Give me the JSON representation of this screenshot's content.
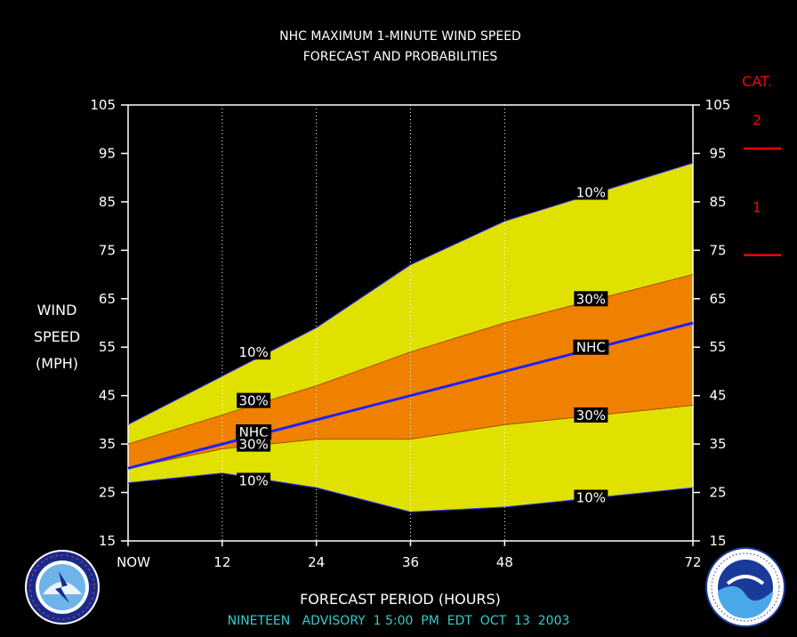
{
  "chart_data": {
    "type": "area",
    "title": [
      "NHC MAXIMUM 1-MINUTE WIND SPEED",
      "FORECAST AND PROBABILITIES"
    ],
    "xlabel": "FORECAST PERIOD (HOURS)",
    "ylabel": [
      "WIND",
      "SPEED",
      "(MPH)"
    ],
    "xlim": [
      0,
      72
    ],
    "ylim": [
      15,
      105
    ],
    "x_ticks": [
      0,
      12,
      24,
      36,
      48,
      72
    ],
    "x_tick_labels": [
      "NOW",
      "12",
      "24",
      "36",
      "48",
      "72"
    ],
    "y_ticks": [
      15,
      25,
      35,
      45,
      55,
      65,
      75,
      85,
      95,
      105
    ],
    "x": [
      0,
      12,
      24,
      36,
      48,
      60,
      72
    ],
    "colors": {
      "band10": "#e1e100",
      "band30": "#f08000",
      "nhc": "#2020ff",
      "category": "#ff0000",
      "advisory": "#33cccc",
      "background": "#000000"
    },
    "series": [
      {
        "name": "10%",
        "role": "upper10",
        "values": [
          39,
          49,
          59,
          72,
          81,
          87,
          93
        ]
      },
      {
        "name": "30%",
        "role": "upper30",
        "values": [
          35,
          41,
          47,
          54,
          60,
          65,
          70
        ]
      },
      {
        "name": "NHC",
        "role": "nhc",
        "values": [
          30,
          35,
          40,
          45,
          50,
          55,
          60
        ]
      },
      {
        "name": "30%",
        "role": "lower30",
        "values": [
          30,
          34,
          36,
          36,
          39,
          41,
          43
        ]
      },
      {
        "name": "10%",
        "role": "lower10",
        "values": [
          27,
          29,
          26,
          21,
          22,
          24,
          26
        ]
      }
    ],
    "annotations": [
      {
        "text": "10%",
        "x": 16,
        "y": 54
      },
      {
        "text": "30%",
        "x": 16,
        "y": 44
      },
      {
        "text": "NHC",
        "x": 16,
        "y": 37.5
      },
      {
        "text": "30%",
        "x": 16,
        "y": 35
      },
      {
        "text": "10%",
        "x": 16,
        "y": 27.5
      },
      {
        "text": "10%",
        "x": 59,
        "y": 87
      },
      {
        "text": "30%",
        "x": 59,
        "y": 65
      },
      {
        "text": "NHC",
        "x": 59,
        "y": 55
      },
      {
        "text": "30%",
        "x": 59,
        "y": 41
      },
      {
        "text": "10%",
        "x": 59,
        "y": 24
      }
    ],
    "categories_scale": {
      "header": "CAT.",
      "labels": [
        {
          "text": "2",
          "y": 102
        },
        {
          "text": "1",
          "y": 84
        }
      ],
      "thresholds": [
        96,
        74
      ]
    }
  },
  "advisory": "NINETEEN   ADVISORY  1 5:00  PM  EDT  OCT  13  2003",
  "logos": {
    "left": "nws-logo",
    "right": "noaa-logo"
  }
}
